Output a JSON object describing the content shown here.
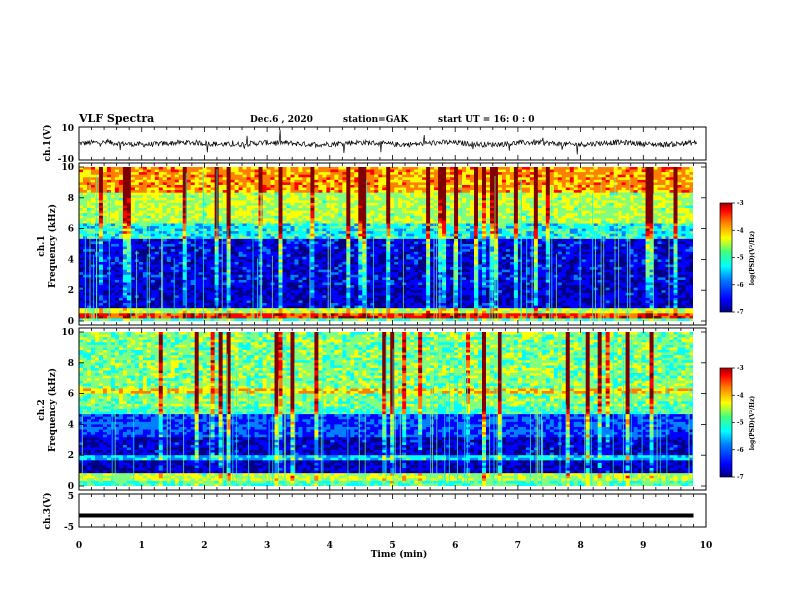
{
  "header": {
    "title": "VLF Spectra",
    "date": "Dec.6  , 2020",
    "station": "station=GAK",
    "start_ut": "start  UT =   16: 0  : 0"
  },
  "chart_data": [
    {
      "type": "line",
      "panel": "ch1-waveform",
      "ylabel": "ch.1(V)",
      "ylim": [
        -10,
        10
      ],
      "yticks": [
        "10",
        "-10"
      ],
      "xlim": [
        0,
        10
      ],
      "baseline": 0,
      "color": "#000000"
    },
    {
      "type": "heatmap",
      "panel": "ch1-spectrogram",
      "ylabel": "ch.1\nFrequency (kHz)",
      "ylim": [
        0,
        10
      ],
      "yticks": [
        "0",
        "2",
        "4",
        "6",
        "8",
        "10"
      ],
      "xlim": [
        0,
        9.8
      ],
      "colorbar": {
        "label": "log(PSD)(V²/Hz)",
        "range": [
          -7,
          -3
        ],
        "ticks": [
          "-3",
          "-4",
          "-5",
          "-6",
          "-7"
        ]
      }
    },
    {
      "type": "heatmap",
      "panel": "ch2-spectrogram",
      "ylabel": "ch.2\nFrequency (kHz)",
      "ylim": [
        0,
        10
      ],
      "yticks": [
        "0",
        "2",
        "4",
        "6",
        "8",
        "10"
      ],
      "xlim": [
        0,
        9.8
      ],
      "colorbar": {
        "label": "log(PSD)(V²/Hz)",
        "range": [
          -7,
          -3
        ],
        "ticks": [
          "-3",
          "-4",
          "-5",
          "-6",
          "-7"
        ]
      }
    },
    {
      "type": "line",
      "panel": "ch3-waveform",
      "ylabel": "ch.3(V)",
      "ylim": [
        -5,
        5
      ],
      "yticks": [
        "5",
        "-5"
      ],
      "xlim": [
        0,
        10
      ],
      "baseline": -1.5,
      "color": "#000000"
    }
  ],
  "xaxis": {
    "label": "Time (min)",
    "ticks": [
      "0",
      "1",
      "2",
      "3",
      "4",
      "5",
      "6",
      "7",
      "8",
      "9",
      "10"
    ]
  },
  "colormap": [
    "#000080",
    "#0000ff",
    "#0080ff",
    "#00ffff",
    "#80ff80",
    "#ffff00",
    "#ff8000",
    "#ff0000",
    "#800000"
  ]
}
